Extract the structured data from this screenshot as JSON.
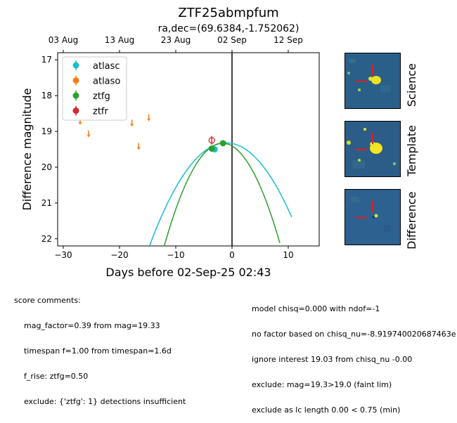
{
  "title": "ZTF25abmpfum",
  "subtitle": "ra,dec=(69.6384,-1.752062)",
  "chart_data": {
    "type": "scatter",
    "xlabel": "Days before 02-Sep-25 02:43",
    "ylabel": "Difference magnitude",
    "xlim": [
      -31,
      15.5
    ],
    "ylim": [
      22.2,
      16.8
    ],
    "y_inverted": true,
    "xticks": [
      -30,
      -20,
      -10,
      0,
      10
    ],
    "xtick_labels": [
      "−30",
      "−20",
      "−10",
      "0",
      "10"
    ],
    "yticks": [
      17,
      18,
      19,
      20,
      21,
      22
    ],
    "ytick_labels": [
      "17",
      "18",
      "19",
      "20",
      "21",
      "22"
    ],
    "top_axis_ticks": [
      -30,
      -20,
      -10,
      0,
      10
    ],
    "top_axis_labels": [
      "03 Aug",
      "13 Aug",
      "23 Aug",
      "02 Sep",
      "12 Sep"
    ],
    "reference_line_x": 0,
    "legend_position": "top-left",
    "series": [
      {
        "name": "atlasc",
        "color": "#17becf",
        "marker": "filled",
        "points": [
          {
            "x": -3.1,
            "y": 19.5,
            "err": 0.07
          }
        ],
        "upper_limits": []
      },
      {
        "name": "atlaso",
        "color": "#ff7f0e",
        "marker": "filled",
        "points": [],
        "upper_limits": [
          {
            "x": -27.0,
            "y": 18.7
          },
          {
            "x": -25.5,
            "y": 19.05
          },
          {
            "x": -17.8,
            "y": 18.75
          },
          {
            "x": -16.6,
            "y": 19.4
          },
          {
            "x": -14.8,
            "y": 18.6
          }
        ]
      },
      {
        "name": "ztfg",
        "color": "#2ca02c",
        "marker": "filled",
        "points": [
          {
            "x": -1.6,
            "y": 19.33,
            "err": 0.05
          },
          {
            "x": -3.6,
            "y": 19.48,
            "err": 0.06
          }
        ],
        "upper_limits": []
      },
      {
        "name": "ztfr",
        "color": "#d62728",
        "marker": "open",
        "points": [
          {
            "x": -3.6,
            "y": 19.25,
            "err": 0.12
          }
        ],
        "upper_limits": []
      }
    ],
    "model_curves": [
      {
        "name": "atlasc",
        "color": "#17becf",
        "peak_x": -1.0,
        "peak_y": 19.32,
        "coef": 0.0154,
        "end_x": 10.6
      },
      {
        "name": "ztfg",
        "color": "#2ca02c",
        "peak_x": -1.7,
        "peak_y": 19.33,
        "coef": 0.0268,
        "end_x": 8.5
      }
    ]
  },
  "panels": [
    {
      "label": "Science"
    },
    {
      "label": "Template"
    },
    {
      "label": "Difference"
    }
  ],
  "comments_left": [
    "score comments:",
    "    mag_factor=0.39 from mag=19.33",
    "    timespan f=1.00 from timespan=1.6d",
    "    f_rise: ztfg=0.50",
    "    exclude: {'ztfg': 1} detections insufficient"
  ],
  "comments_right": [
    "model chisq=0.000 with ndof=-1",
    "no factor based on chisq_nu=-8.919740020687463e",
    "ignore interest 19.03 from chisq_nu -0.00",
    "exclude: mag=19.3>19.0 (faint lim)",
    "exclude as lc length 0.00 < 0.75 (min)"
  ]
}
